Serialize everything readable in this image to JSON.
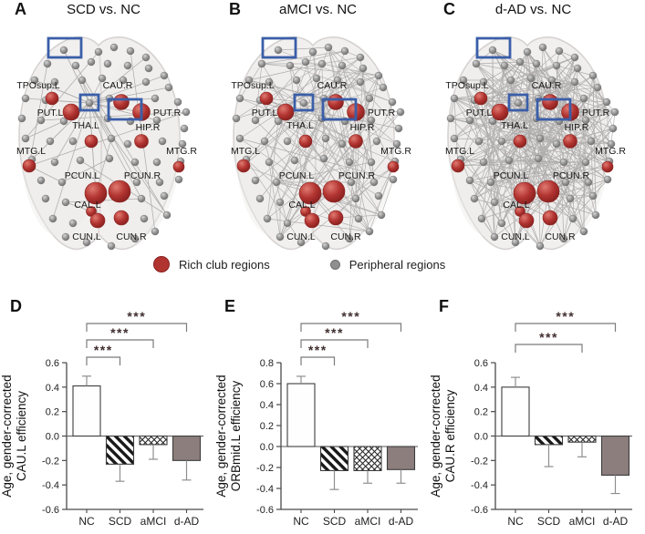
{
  "figure": {
    "brain_panels": [
      {
        "letter": "A",
        "title": "SCD vs. NC"
      },
      {
        "letter": "B",
        "title": "aMCI vs. NC"
      },
      {
        "letter": "C",
        "title": "d-AD vs. NC"
      }
    ],
    "regions": [
      "TPOsup.L",
      "PUT.L",
      "CAU.R",
      "PUT.R",
      "THA.L",
      "HIP.R",
      "MTG.L",
      "MTG.R",
      "PCUN.L",
      "PCUN.R",
      "CAL.L",
      "CUN.L",
      "CUN.R"
    ],
    "legend": {
      "items": [
        {
          "label": "Rich club regions"
        },
        {
          "label": "Peripheral regions"
        }
      ]
    }
  },
  "colors": {
    "rich_club": "#b23431",
    "peripheral": "#8f8f8f",
    "highlight_box": "#3a5ea8",
    "bar_solid": "#8b7e7d",
    "sig_star": "#3f2e2e",
    "axis": "#4a4a4a",
    "error": "#8f8f8f",
    "brain_fill": "#f2f0ef",
    "brain_stroke": "#d6d2d1"
  },
  "chart_data": [
    {
      "panel": "D",
      "type": "bar",
      "categories": [
        "NC",
        "SCD",
        "aMCI",
        "d-AD"
      ],
      "values": [
        0.41,
        -0.23,
        -0.07,
        -0.2
      ],
      "errors": [
        0.08,
        0.14,
        0.12,
        0.16
      ],
      "ylabel_line1": "Age, gender-corrected",
      "ylabel_line2": "CAU.L efficiency",
      "ylim": [
        -0.6,
        0.6
      ],
      "ytick_labels": [
        "0.6",
        "0.4",
        "0.2",
        "0.0",
        "-0.2",
        "-0.4",
        "-0.6"
      ],
      "bar_styles": [
        "white",
        "diagonal-hatch",
        "cross-hatch",
        "solid"
      ],
      "significance": [
        {
          "from": 0,
          "to": 1,
          "label": "***"
        },
        {
          "from": 0,
          "to": 2,
          "label": "***"
        },
        {
          "from": 0,
          "to": 3,
          "label": "***"
        }
      ]
    },
    {
      "panel": "E",
      "type": "bar",
      "categories": [
        "NC",
        "SCD",
        "aMCI",
        "d-AD"
      ],
      "values": [
        0.6,
        -0.23,
        -0.23,
        -0.22
      ],
      "errors": [
        0.07,
        0.18,
        0.12,
        0.13
      ],
      "ylabel_line1": "Age, gender-corrected",
      "ylabel_line2": "ORBmid.L efficiency",
      "ylim": [
        -0.6,
        0.8
      ],
      "ytick_labels": [
        "0.8",
        "0.6",
        "0.4",
        "0.2",
        "0.0",
        "-0.2",
        "-0.4",
        "-0.6"
      ],
      "bar_styles": [
        "white",
        "diagonal-hatch",
        "cross-hatch",
        "solid"
      ],
      "significance": [
        {
          "from": 0,
          "to": 1,
          "label": "***"
        },
        {
          "from": 0,
          "to": 2,
          "label": "***"
        },
        {
          "from": 0,
          "to": 3,
          "label": "***"
        }
      ]
    },
    {
      "panel": "F",
      "type": "bar",
      "categories": [
        "NC",
        "SCD",
        "aMCI",
        "d-AD"
      ],
      "values": [
        0.4,
        -0.07,
        -0.05,
        -0.32
      ],
      "errors": [
        0.08,
        0.18,
        0.12,
        0.15
      ],
      "ylabel_line1": "Age, gender-corrected",
      "ylabel_line2": "CAU.R efficiency",
      "ylim": [
        -0.6,
        0.6
      ],
      "ytick_labels": [
        "0.6",
        "0.4",
        "0.2",
        "0.0",
        "-0.2",
        "-0.4",
        "-0.6"
      ],
      "bar_styles": [
        "white",
        "diagonal-hatch",
        "cross-hatch",
        "solid"
      ],
      "significance": [
        {
          "from": 0,
          "to": 2,
          "label": "***"
        },
        {
          "from": 0,
          "to": 3,
          "label": "***"
        }
      ]
    }
  ]
}
